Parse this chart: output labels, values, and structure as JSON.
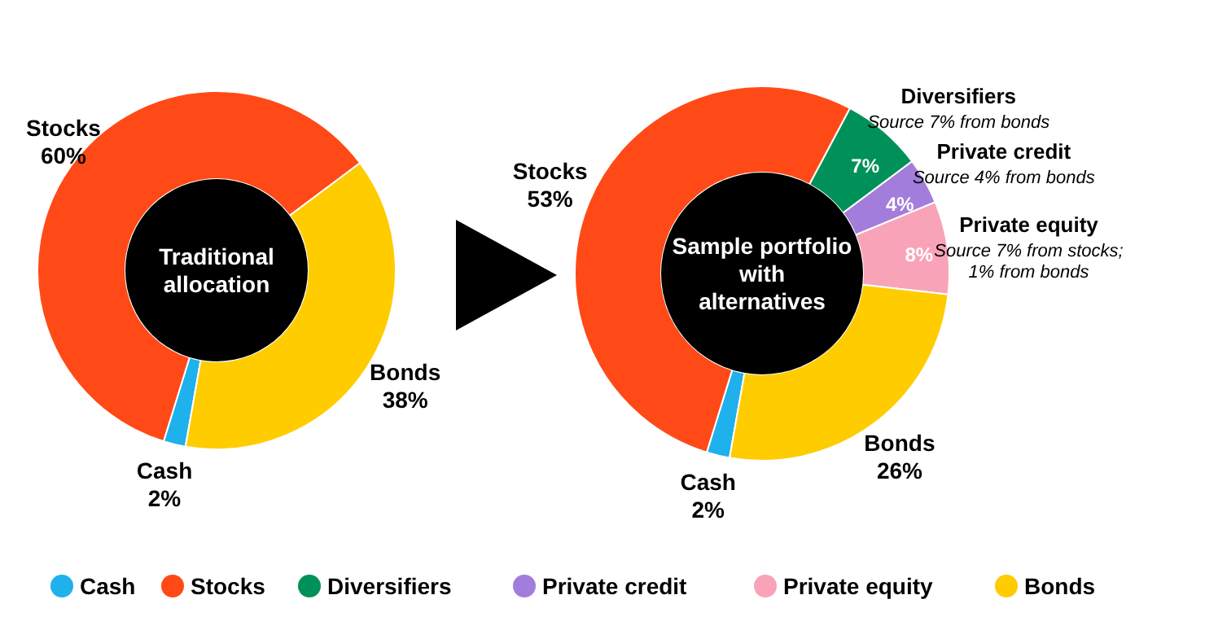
{
  "chart_data": [
    {
      "type": "donut",
      "title": "Traditional allocation",
      "categories": [
        "Cash",
        "Stocks",
        "Bonds"
      ],
      "values": [
        2,
        60,
        38
      ],
      "colors": [
        "#1eb1ec",
        "#ff4a17",
        "#ffcc00"
      ],
      "value_labels": [
        "2%",
        "60%",
        "38%"
      ]
    },
    {
      "type": "donut",
      "title": "Sample portfolio with alternatives",
      "categories": [
        "Cash",
        "Stocks",
        "Diversifiers",
        "Private credit",
        "Private equity",
        "Bonds"
      ],
      "values": [
        2,
        53,
        7,
        4,
        8,
        26
      ],
      "colors": [
        "#1eb1ec",
        "#ff4a17",
        "#00915a",
        "#a37ddb",
        "#f9a3b9",
        "#ffcc00"
      ],
      "value_labels": [
        "2%",
        "53%",
        "7%",
        "4%",
        "8%",
        "26%"
      ],
      "legend": "bottom",
      "annotations": [
        {
          "text": "Source 7% from bonds",
          "x": "Diversifiers"
        },
        {
          "text": "Source 4% from bonds",
          "x": "Private credit"
        },
        {
          "text": "Source 7% from stocks; 1% from bonds",
          "x": "Private equity"
        }
      ]
    }
  ]
}
